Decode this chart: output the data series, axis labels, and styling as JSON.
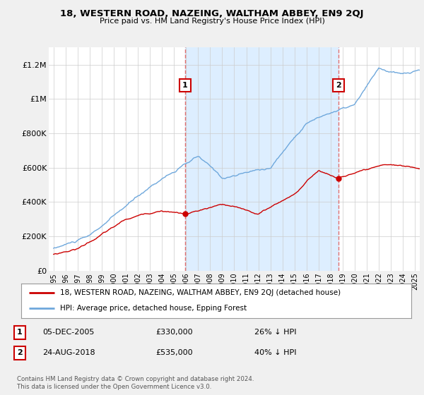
{
  "title": "18, WESTERN ROAD, NAZEING, WALTHAM ABBEY, EN9 2QJ",
  "subtitle": "Price paid vs. HM Land Registry's House Price Index (HPI)",
  "ylim": [
    0,
    1300000
  ],
  "yticks": [
    0,
    200000,
    400000,
    600000,
    800000,
    1000000,
    1200000
  ],
  "ytick_labels": [
    "£0",
    "£200K",
    "£400K",
    "£600K",
    "£800K",
    "£1M",
    "£1.2M"
  ],
  "xtick_years": [
    1995,
    1996,
    1997,
    1998,
    1999,
    2000,
    2001,
    2002,
    2003,
    2004,
    2005,
    2006,
    2007,
    2008,
    2009,
    2010,
    2011,
    2012,
    2013,
    2014,
    2015,
    2016,
    2017,
    2018,
    2019,
    2020,
    2021,
    2022,
    2023,
    2024,
    2025
  ],
  "hpi_color": "#6fa8dc",
  "price_color": "#cc0000",
  "marker1_x": 2005.92,
  "marker1_y": 330000,
  "marker2_x": 2018.65,
  "marker2_y": 535000,
  "shade_color": "#ddeeff",
  "vline_color": "#e07070",
  "legend_line1": "18, WESTERN ROAD, NAZEING, WALTHAM ABBEY, EN9 2QJ (detached house)",
  "legend_line2": "HPI: Average price, detached house, Epping Forest",
  "note1_date": "05-DEC-2005",
  "note1_price": "£330,000",
  "note1_hpi": "26% ↓ HPI",
  "note2_date": "24-AUG-2018",
  "note2_price": "£535,000",
  "note2_hpi": "40% ↓ HPI",
  "footnote": "Contains HM Land Registry data © Crown copyright and database right 2024.\nThis data is licensed under the Open Government Licence v3.0.",
  "bg_color": "#f0f0f0",
  "plot_bg_color": "#ffffff"
}
